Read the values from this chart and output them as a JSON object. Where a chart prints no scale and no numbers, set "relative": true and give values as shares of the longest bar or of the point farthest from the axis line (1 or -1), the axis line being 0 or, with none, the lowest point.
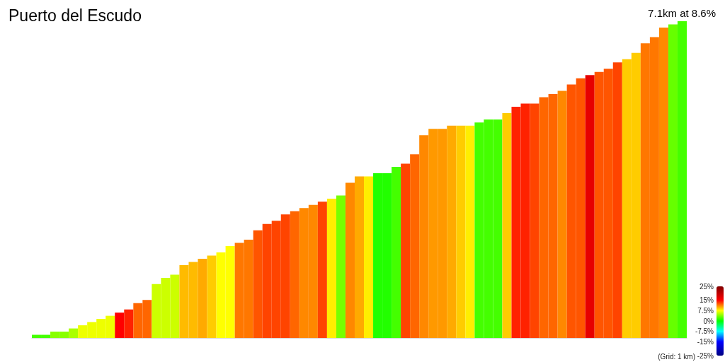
{
  "chart_data": {
    "type": "bar",
    "title": "Puerto del Escudo",
    "subtitle": "7.1km at 8.6%",
    "annotations": [
      "(Grid: 1 km)"
    ],
    "relative": true,
    "categories": [
      null,
      null,
      null,
      null,
      null,
      null,
      null,
      null,
      null,
      null,
      null,
      null,
      null,
      null,
      null,
      null,
      null,
      null,
      null,
      null,
      null,
      null,
      null,
      null,
      null,
      null,
      null,
      null,
      null,
      null,
      null,
      null,
      null,
      null,
      null,
      null,
      null,
      null,
      null,
      null,
      null,
      null,
      null,
      null,
      null,
      null,
      null,
      null,
      null,
      null,
      null,
      null,
      null,
      null,
      null,
      null,
      null,
      null,
      null,
      null,
      null,
      null,
      null,
      null,
      null,
      null,
      null,
      null,
      null,
      null,
      null
    ],
    "values": [
      0.01,
      0.01,
      0.02,
      0.02,
      0.03,
      0.04,
      0.05,
      0.06,
      0.07,
      0.08,
      0.09,
      0.11,
      0.12,
      0.17,
      0.19,
      0.2,
      0.23,
      0.24,
      0.25,
      0.26,
      0.27,
      0.29,
      0.3,
      0.31,
      0.34,
      0.36,
      0.37,
      0.39,
      0.4,
      0.41,
      0.42,
      0.43,
      0.44,
      0.45,
      0.49,
      0.51,
      0.51,
      0.52,
      0.52,
      0.54,
      0.55,
      0.58,
      0.64,
      0.66,
      0.66,
      0.67,
      0.67,
      0.67,
      0.68,
      0.69,
      0.69,
      0.71,
      0.73,
      0.74,
      0.74,
      0.76,
      0.77,
      0.78,
      0.8,
      0.82,
      0.83,
      0.84,
      0.85,
      0.87,
      0.88,
      0.9,
      0.93,
      0.95,
      0.98,
      0.99,
      1
    ],
    "colors": [
      "#44ff00",
      "#44ff00",
      "#88ff00",
      "#88ff00",
      "#aaff00",
      "#eeff00",
      "#eeff00",
      "#eeff00",
      "#eeff00",
      "#ff0000",
      "#ff2200",
      "#ff6600",
      "#ff6600",
      "#ccff00",
      "#ccff00",
      "#ccff00",
      "#ffbb00",
      "#ffbb00",
      "#ffaa00",
      "#ffcc00",
      "#ffff00",
      "#ffff00",
      "#ff7700",
      "#ff7700",
      "#ff5500",
      "#ff4400",
      "#ff4400",
      "#ff4400",
      "#ff6600",
      "#ff8800",
      "#ff8800",
      "#ff4400",
      "#ffee00",
      "#77ff00",
      "#ff8800",
      "#ffaa00",
      "#ffee00",
      "#22ff00",
      "#22ff00",
      "#44ff00",
      "#ff4400",
      "#ff6600",
      "#ff8800",
      "#ff9900",
      "#ff9900",
      "#ffaa00",
      "#ffcc00",
      "#ffee00",
      "#44ff00",
      "#44ff00",
      "#44ff00",
      "#ffcc00",
      "#ff2200",
      "#ff2200",
      "#ff4400",
      "#ff6600",
      "#ff6600",
      "#ff8800",
      "#ff5500",
      "#ff5500",
      "#e60000",
      "#ff5500",
      "#ff5500",
      "#ff4400",
      "#ffcc00",
      "#ffcc00",
      "#ff7700",
      "#ff7700",
      "#ff8800",
      "#66ff00",
      "#44ff00"
    ],
    "clim": [
      -25,
      25
    ],
    "cticks": [
      {
        "value": 25,
        "label": "25%"
      },
      {
        "value": 15,
        "label": "15%"
      },
      {
        "value": 7.5,
        "label": "7.5%"
      },
      {
        "value": 0,
        "label": "0%"
      },
      {
        "value": -7.5,
        "label": "-7.5%"
      },
      {
        "value": -15,
        "label": "-15%"
      },
      {
        "value": -25,
        "label": "-25%"
      }
    ]
  }
}
